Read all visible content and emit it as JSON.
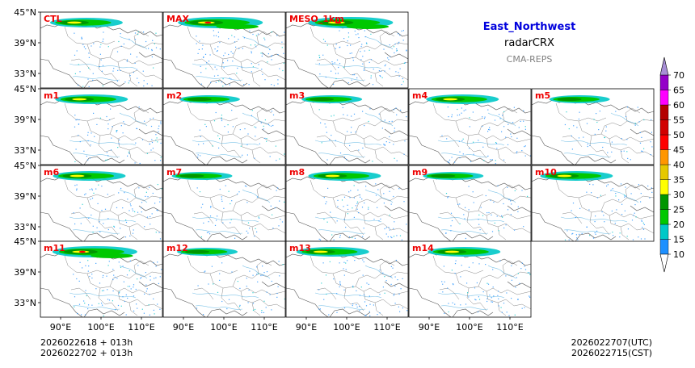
{
  "header": {
    "region": "East_Northwest",
    "variable": "radarCRX",
    "system": "CMA-REPS",
    "region_color": "#0000dd",
    "system_color": "#808080"
  },
  "panels": [
    {
      "label": "CTL",
      "intensity": 2
    },
    {
      "label": "MAX",
      "intensity": 3
    },
    {
      "label": "MESO_1km",
      "intensity": 3
    },
    {
      "label": "m1",
      "intensity": 2
    },
    {
      "label": "m2",
      "intensity": 1
    },
    {
      "label": "m3",
      "intensity": 1
    },
    {
      "label": "m4",
      "intensity": 2
    },
    {
      "label": "m5",
      "intensity": 1
    },
    {
      "label": "m6",
      "intensity": 2
    },
    {
      "label": "m7",
      "intensity": 1
    },
    {
      "label": "m8",
      "intensity": 2
    },
    {
      "label": "m9",
      "intensity": 1
    },
    {
      "label": "m10",
      "intensity": 2
    },
    {
      "label": "m11",
      "intensity": 3
    },
    {
      "label": "m12",
      "intensity": 1
    },
    {
      "label": "m13",
      "intensity": 2
    },
    {
      "label": "m14",
      "intensity": 2
    }
  ],
  "label_color": "#ee0000",
  "lat_ticks": [
    "45°N",
    "39°N",
    "33°N"
  ],
  "lon_ticks": [
    "90°E",
    "100°E",
    "110°E"
  ],
  "colorbar": {
    "levels": [
      "10",
      "15",
      "20",
      "25",
      "30",
      "35",
      "40",
      "45",
      "50",
      "55",
      "60",
      "65",
      "70"
    ],
    "colors": [
      "#1e90ff",
      "#00c8c8",
      "#00c800",
      "#009600",
      "#ffff00",
      "#e6c800",
      "#ff9600",
      "#ff0000",
      "#d20000",
      "#b40000",
      "#ff00ff",
      "#9400c8",
      "#a78ed6"
    ]
  },
  "footer": {
    "init_line1": "2026022618  +  013h",
    "init_line2": "2026022702  +  013h",
    "valid_utc": "2026022707(UTC)",
    "valid_cst": "2026022715(CST)"
  }
}
